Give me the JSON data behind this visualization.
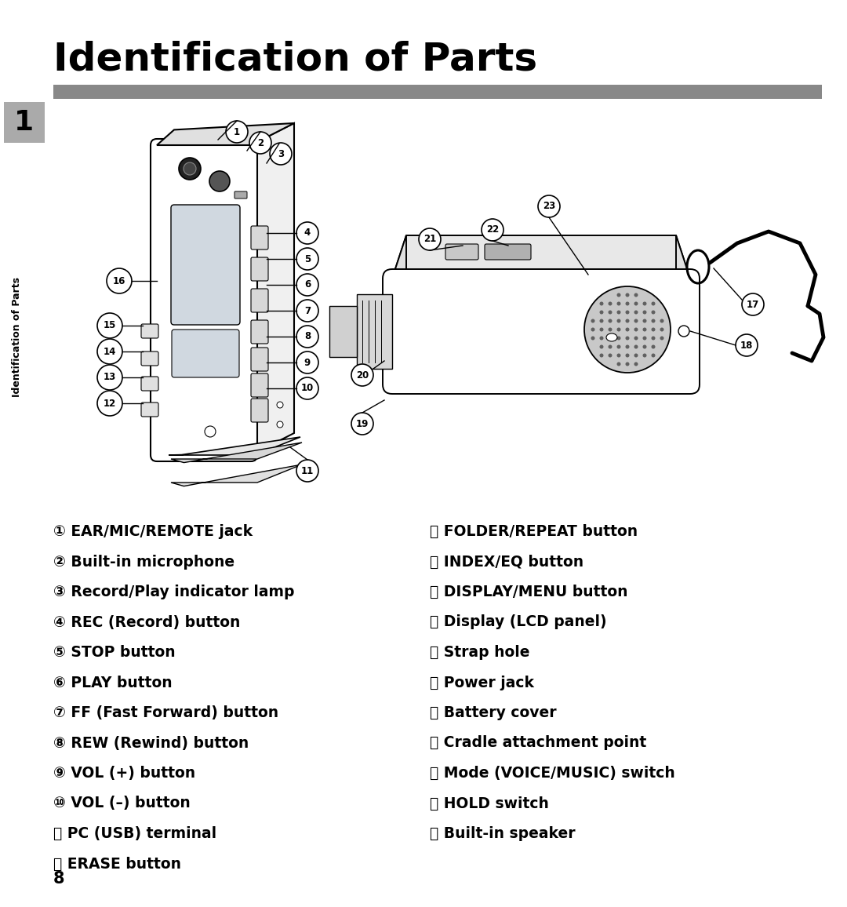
{
  "title": "Identification of Parts",
  "section_number": "1",
  "sidebar_text": "Identification of Parts",
  "page_number": "8",
  "bg_color": "#ffffff",
  "title_color": "#000000",
  "bar_color": "#888888",
  "left_labels": [
    {
      "num": "①",
      "text": " EAR/MIC/REMOTE jack"
    },
    {
      "num": "②",
      "text": " Built-in microphone"
    },
    {
      "num": "③",
      "text": " Record/Play indicator lamp"
    },
    {
      "num": "④",
      "text": " REC (Record) button"
    },
    {
      "num": "⑤",
      "text": " STOP button"
    },
    {
      "num": "⑥",
      "text": " PLAY button"
    },
    {
      "num": "⑦",
      "text": " FF (Fast Forward) button"
    },
    {
      "num": "⑧",
      "text": " REW (Rewind) button"
    },
    {
      "num": "⑨",
      "text": " VOL (+) button"
    },
    {
      "num": "⑩",
      "text": " VOL (–) button"
    },
    {
      "num": "⑪",
      "text": " PC (USB) terminal"
    },
    {
      "num": "⑫",
      "text": " ERASE button"
    }
  ],
  "right_labels": [
    {
      "num": "⑬",
      "text": " FOLDER/REPEAT button"
    },
    {
      "num": "⑭",
      "text": " INDEX/EQ button"
    },
    {
      "num": "⑮",
      "text": " DISPLAY/MENU button"
    },
    {
      "num": "⑯",
      "text": " Display (LCD panel)"
    },
    {
      "num": "⑰",
      "text": " Strap hole"
    },
    {
      "num": "⑱",
      "text": " Power jack"
    },
    {
      "num": "⑲",
      "text": " Battery cover"
    },
    {
      "num": "⑳",
      "text": " Cradle attachment point"
    },
    {
      "num": "㉑",
      "text": " Mode (VOICE/MUSIC) switch"
    },
    {
      "num": "㉒",
      "text": " HOLD switch"
    },
    {
      "num": "㉓",
      "text": " Built-in speaker"
    }
  ],
  "label_num_chars": [
    "①",
    "②",
    "③",
    "④",
    "⑤",
    "⑥",
    "⑦",
    "⑧",
    "⑨",
    "⑩",
    "⑪",
    "⑫",
    "⑬",
    "⑭",
    "⑮",
    "⑯",
    "⑰",
    "⑱",
    "⑲",
    "⑳",
    "㉑",
    "㉒",
    "㉓"
  ]
}
